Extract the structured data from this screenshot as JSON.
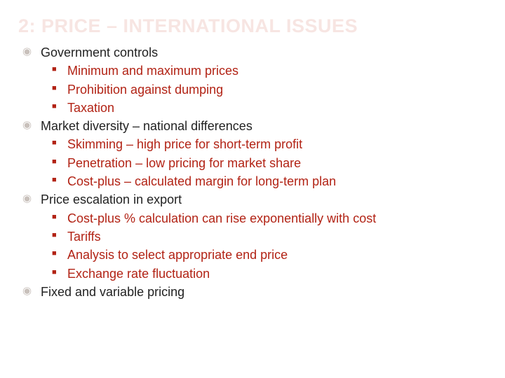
{
  "title": "2: PRICE – INTERNATIONAL ISSUES",
  "colors": {
    "title_color": "#f7e5e2",
    "outer_bullet_color": "#c8c0bb",
    "outer_text_color": "#222222",
    "inner_color": "#b22315",
    "background": "#ffffff"
  },
  "typography": {
    "title_fontsize": 27,
    "body_fontsize": 18,
    "font_family": "Verdana, Geneva, sans-serif"
  },
  "items": [
    {
      "label": "Government controls",
      "children": [
        "Minimum and maximum prices",
        "Prohibition against dumping",
        "Taxation"
      ]
    },
    {
      "label": "Market diversity – national differences",
      "children": [
        "Skimming – high price for short-term profit",
        "Penetration – low pricing for market share",
        "Cost-plus – calculated margin for long-term plan"
      ]
    },
    {
      "label": "Price escalation in export",
      "children": [
        "Cost-plus % calculation can rise exponentially with cost",
        "Tariffs",
        "Analysis to select appropriate end price",
        "Exchange rate fluctuation"
      ]
    },
    {
      "label": "Fixed and variable pricing",
      "children": []
    }
  ]
}
